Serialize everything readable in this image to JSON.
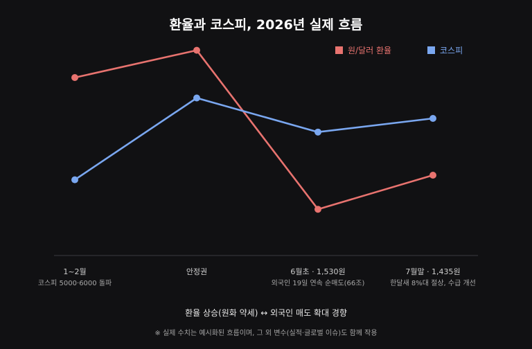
{
  "chart_data": {
    "type": "line",
    "title": "환율과 코스피, 2026년 실제 흐름",
    "categories": [
      {
        "label": "1~2월",
        "sub": "코스피 5000·6000 돌파"
      },
      {
        "label": "안정권",
        "sub": ""
      },
      {
        "label": "6월초 · 1,530원",
        "sub": "외국인 19일 연속 순매도(66조)"
      },
      {
        "label": "7월말 · 1,435원",
        "sub": "한달새 8%대 절상, 수급 개선"
      }
    ],
    "ylim": [
      0,
      100
    ],
    "series": [
      {
        "name": "원/달러 환율",
        "color": "#e8736f",
        "values": [
          75,
          87,
          17,
          32
        ]
      },
      {
        "name": "코스피",
        "color": "#7aa7f0",
        "values": [
          30,
          66,
          51,
          57
        ]
      }
    ],
    "legend_position": "top-right",
    "grid": false,
    "caption": "환율 상승(원화 약세) ↔ 외국인 매도 확대 경향",
    "footnote": "※ 실제 수치는 예시화된 흐름이며, 그 외 변수(실적·글로벌 이슈)도 함께 작용"
  }
}
